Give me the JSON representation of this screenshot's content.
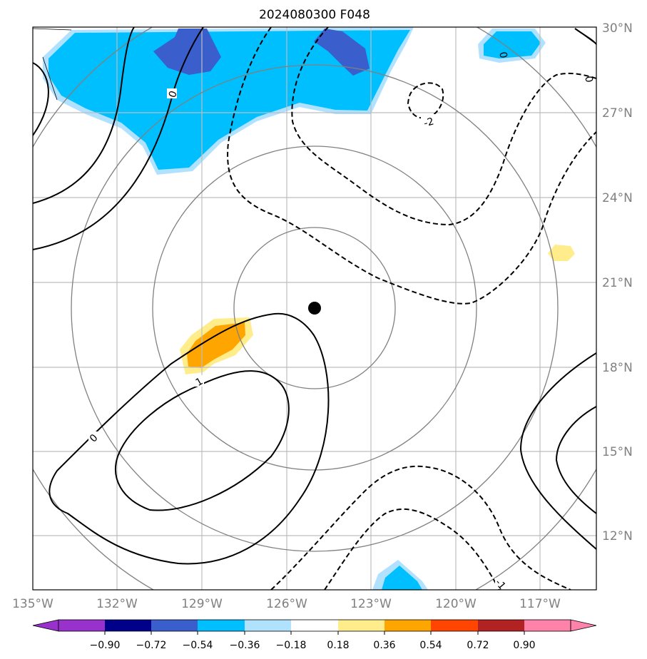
{
  "title": "2024080300 F048",
  "lon_labels": [
    "135°W",
    "132°W",
    "129°W",
    "126°W",
    "123°W",
    "120°W",
    "117°W"
  ],
  "lat_labels": [
    "30°N",
    "27°N",
    "24°N",
    "21°N",
    "18°N",
    "15°N",
    "12°N"
  ],
  "colorbar": {
    "ticks": [
      "−0.90",
      "−0.72",
      "−0.54",
      "−0.36",
      "−0.18",
      "0.18",
      "0.36",
      "0.54",
      "0.72",
      "0.90"
    ],
    "colors": [
      "#9932cc",
      "#00008b",
      "#3a5fcd",
      "#00bfff",
      "#b0e2ff",
      "#ffffff",
      "#ffec8b",
      "#ffa500",
      "#ff4500",
      "#b22222",
      "#ff82ab"
    ]
  },
  "contour_labels": {
    "zero_top": "0",
    "zero_bottom": "0",
    "one_positive": "1",
    "minus_two": "-2",
    "minus_one": "-1",
    "zero_right": "0",
    "zero_small": "0"
  },
  "storm_center": {
    "lon": -125.0,
    "lat": 20.0
  },
  "colors": {
    "grid": "#bdbdbd",
    "range_rings": "#808080",
    "contour": "#000000",
    "land_border": "#000000"
  }
}
